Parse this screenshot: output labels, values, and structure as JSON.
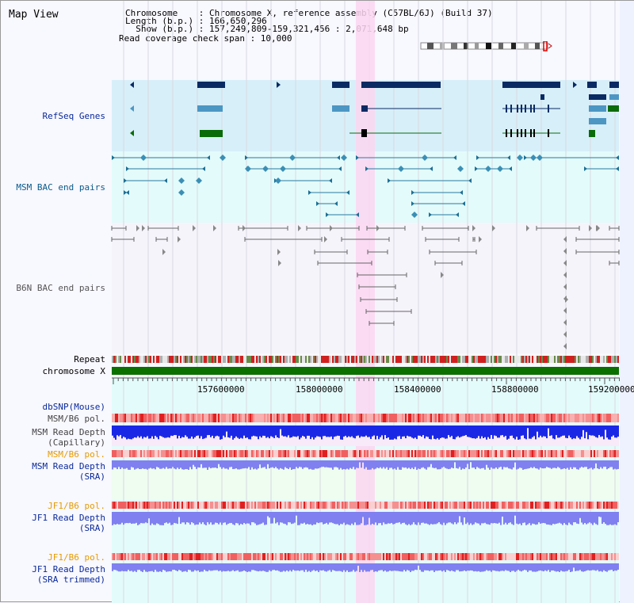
{
  "window": {
    "title": "Map View"
  },
  "info": {
    "chromosome_line": "Chromosome    : Chromosome X, reference assembly (C57BL/6J) (Build 37)",
    "length_line": "Length (b.p.) : 166,650,296",
    "show_line": "  Show (b.p.) : 157,249,809-159,321,456 : 2,071,648 bp",
    "coverage_line": "Read coverage check span : 10,000"
  },
  "tracks": {
    "refseq": "RefSeq Genes",
    "msm_bac": "MSM BAC end pairs",
    "b6n_bac": "B6N BAC end pairs",
    "repeat": "Repeat",
    "chromosome": "chromosome X",
    "dbsnp": "dbSNP(Mouse)",
    "msm_b6_pol": "MSM/B6 pol.",
    "msm_read_depth_cap_1": "MSM Read Depth",
    "msm_read_depth_cap_2": "(Capillary)",
    "msm_b6_pol_2": "MSM/B6 pol.",
    "msm_read_depth_sra_1": "MSM Read Depth",
    "msm_read_depth_sra_2": "(SRA)",
    "jf1_b6_pol": "JF1/B6 pol.",
    "jf1_read_depth_sra_1": "JF1 Read Depth",
    "jf1_read_depth_sra_2": "(SRA)",
    "jf1_b6_pol_2": "JF1/B6 pol.",
    "jf1_read_depth_trim_1": "JF1 Read Depth",
    "jf1_read_depth_trim_2": "(SRA trimmed)"
  },
  "ruler": {
    "ticks": [
      "157600000",
      "158000000",
      "158400000",
      "158800000",
      "159200000"
    ]
  },
  "colors": {
    "refseq_bg": "#d7eff9",
    "msm_bg": "#e3fbfb",
    "b6n_bg": "#f6f4fb",
    "highlight": "#fbd6f1",
    "dark_gene": "#0a2a63",
    "mid_gene": "#4c96c4",
    "green_gene": "#0a6b0a",
    "chromosome_bar": "#0b7000",
    "label_blue": "#0a2a9a",
    "label_orange": "#e59b00",
    "depth_blue": "#1a28e6",
    "depth_light": "#8080f0",
    "pol_red": "#f04040"
  }
}
